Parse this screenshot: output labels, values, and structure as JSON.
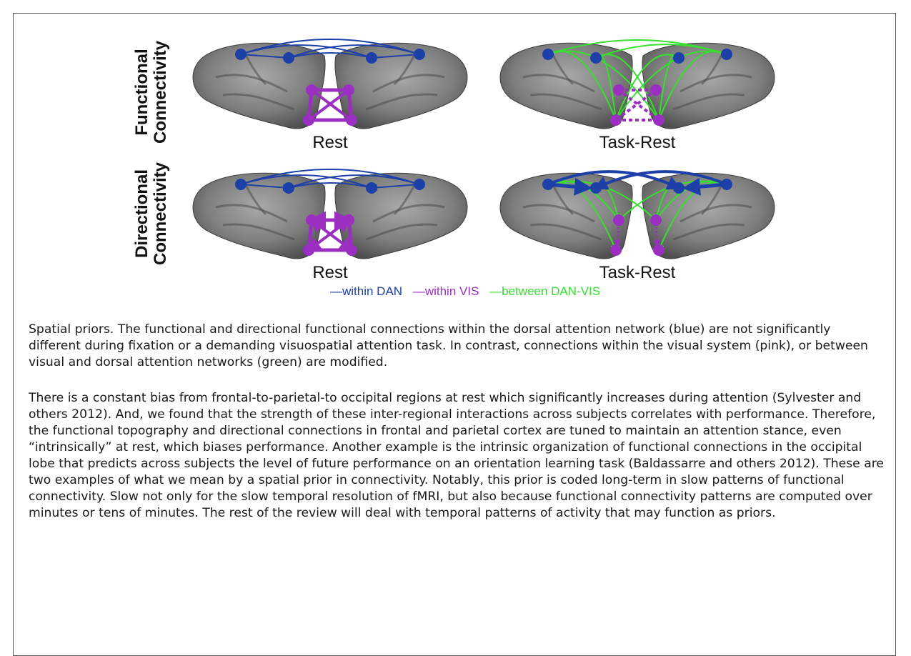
{
  "figure": {
    "row_labels": [
      "Functional\nConnectivity",
      "Directional\nConnectivity"
    ],
    "panel_labels": [
      "Rest",
      "Task-Rest",
      "Rest",
      "Task-Rest"
    ],
    "legend": {
      "dan": "—within DAN",
      "vis": "—within VIS",
      "between": "—between DAN-VIS"
    },
    "colors": {
      "dan": "#1c3fa8",
      "vis": "#9b2fc2",
      "between": "#36e02e",
      "brain": "#7d7d7d"
    }
  },
  "caption": {
    "p1": "Spatial priors. The functional and directional functional connections within the dorsal attention network (blue) are not significantly different during fixation or a demanding visuospatial attention task. In contrast, connections within the visual system (pink), or between visual and dorsal attention networks (green) are modified.",
    "p2": "There is a constant bias from frontal-to-parietal-to occipital regions at rest which significantly increases during attention (Sylvester and others 2012). And, we found that the strength of these inter-regional interactions across subjects correlates with performance. Therefore, the functional topography and directional connections in frontal and parietal cortex are tuned to maintain an attention stance, even “intrinsically” at rest, which biases performance. Another example is the intrinsic organization of functional connections in the occipital lobe that predicts across subjects the level of future performance on an orientation learning task (Baldassarre and others 2012). These are two examples of what we mean by a spatial prior in connectivity. Notably, this prior is coded long-term in slow patterns of functional connectivity. Slow not only for the slow temporal resolution of fMRI, but also because functional connectivity patterns are computed over minutes or tens of minutes. The rest of the review will deal with temporal patterns of activity that may function as priors."
  }
}
